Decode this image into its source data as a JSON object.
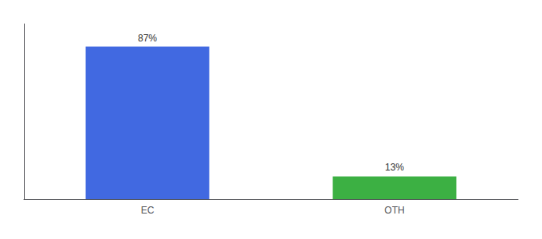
{
  "chart_data": {
    "type": "bar",
    "categories": [
      "EC",
      "OTH"
    ],
    "values": [
      87,
      13
    ],
    "value_labels": [
      "87%",
      "13%"
    ],
    "data_labels": true,
    "colors": [
      "#4169e1",
      "#3cb043"
    ],
    "ylim": [
      0,
      100
    ],
    "yticks": [],
    "tick_labels": "x",
    "grid": false
  }
}
